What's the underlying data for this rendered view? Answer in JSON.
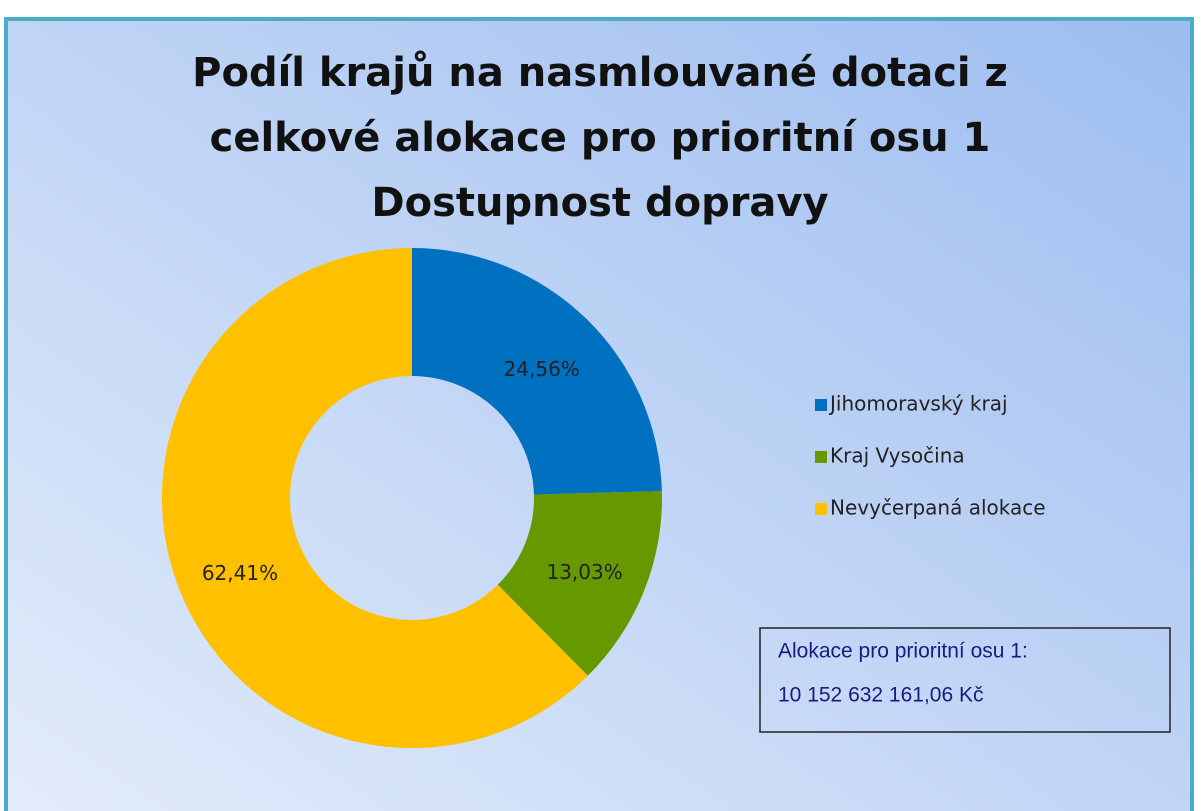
{
  "chart_data": {
    "type": "pie",
    "title": [
      "Podíl krajů na nasmlouvané dotaci z",
      "celkové alokace pro prioritní osu 1",
      "Dostupnost dopravy"
    ],
    "categories": [
      "Jihomoravský kraj",
      "Kraj Vysočina",
      "Nevyčerpaná alokace"
    ],
    "values": [
      24.56,
      13.03,
      62.41
    ],
    "value_labels": [
      "24,56%",
      "13,03%",
      "62,41%"
    ],
    "colors": [
      "#0070c0",
      "#669900",
      "#ffc000"
    ],
    "legend": "right",
    "annotation": [
      "Alokace pro prioritní osu 1:",
      "10 152 632 161,06 Kč"
    ]
  }
}
